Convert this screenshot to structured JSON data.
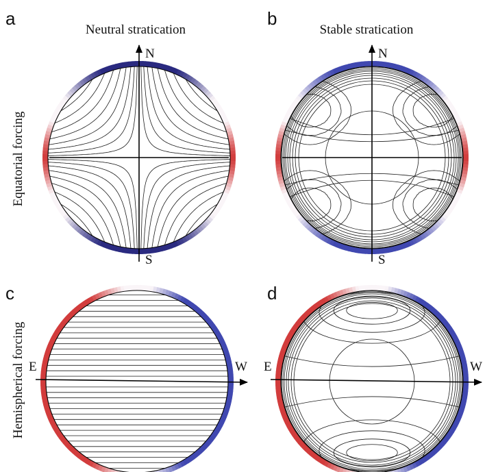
{
  "panel_labels": [
    "a",
    "b",
    "c",
    "d"
  ],
  "column_titles": [
    "Neutral stratication",
    "Stable stratication"
  ],
  "row_labels": [
    "Equatorial forcing",
    "Hemispherical forcing"
  ],
  "direction_labels": {
    "north": "N",
    "south": "S",
    "east": "E",
    "west": "W"
  },
  "colors": {
    "warm": "#d23c3c",
    "cold": "#4048b0",
    "dark_cold": "#2a2a80",
    "contour": "#1a1a1a"
  },
  "panels": [
    {
      "id": "a",
      "forcing": "equatorial",
      "stratification": "neutral",
      "axes": "N-S",
      "rim": "red at equator, dark blue at poles"
    },
    {
      "id": "b",
      "forcing": "equatorial",
      "stratification": "stable",
      "axes": "N-S",
      "rim": "red at equator, blue at poles"
    },
    {
      "id": "c",
      "forcing": "hemispherical",
      "stratification": "neutral",
      "axes": "E-W",
      "rim": "red in east, blue in west"
    },
    {
      "id": "d",
      "forcing": "hemispherical",
      "stratification": "stable",
      "axes": "E-W",
      "rim": "red in east, blue in west"
    }
  ]
}
